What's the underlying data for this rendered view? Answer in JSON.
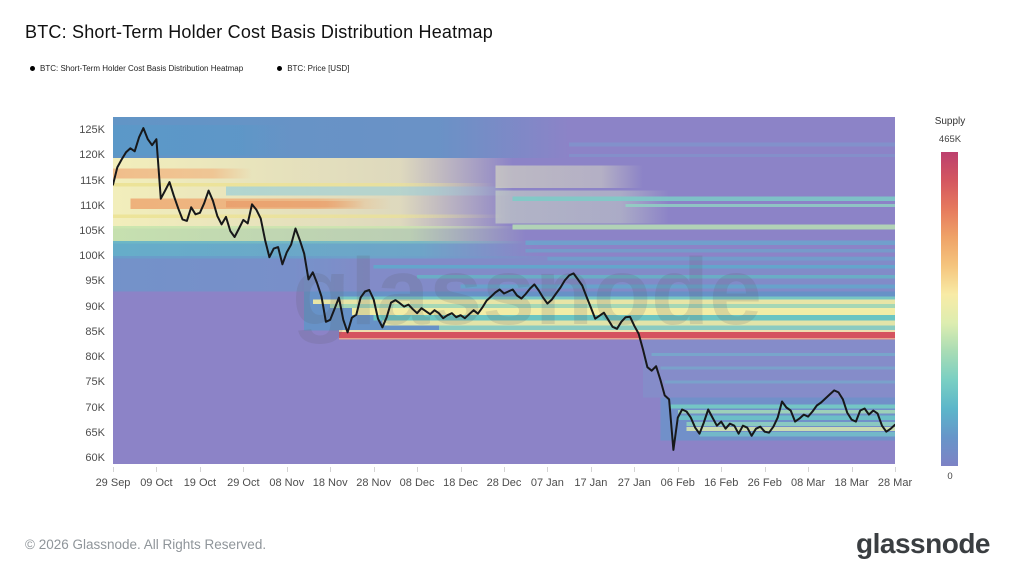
{
  "title": "BTC: Short-Term Holder Cost Basis Distribution Heatmap",
  "legend": [
    {
      "label": "BTC: Short-Term Holder Cost Basis Distribution Heatmap"
    },
    {
      "label": "BTC: Price [USD]"
    }
  ],
  "watermark": "glassnode",
  "colorbar": {
    "title": "Supply",
    "max_label": "465K",
    "min_label": "0",
    "stops": [
      "#bc3f6e",
      "#d45760",
      "#e67a5e",
      "#efa368",
      "#f5c57e",
      "#f8eba6",
      "#ddedb0",
      "#a8dcb5",
      "#79cfc3",
      "#5cb6ca",
      "#6795c9",
      "#7d82c5"
    ]
  },
  "footer": {
    "copyright": "© 2026 Glassnode. All Rights Reserved.",
    "brand": "glassnode"
  },
  "chart_data": {
    "type": "heatmap",
    "title": "BTC: Short-Term Holder Cost Basis Distribution Heatmap",
    "x_tick_labels": [
      "29 Sep",
      "09 Oct",
      "19 Oct",
      "29 Oct",
      "08 Nov",
      "18 Nov",
      "28 Nov",
      "08 Dec",
      "18 Dec",
      "28 Dec",
      "07 Jan",
      "17 Jan",
      "27 Jan",
      "06 Feb",
      "16 Feb",
      "26 Feb",
      "08 Mar",
      "18 Mar",
      "28 Mar"
    ],
    "x_tick_days": [
      0,
      10,
      20,
      30,
      40,
      50,
      60,
      70,
      80,
      90,
      100,
      110,
      120,
      130,
      140,
      150,
      160,
      170,
      180
    ],
    "y_tick_labels": [
      "125K",
      "120K",
      "115K",
      "110K",
      "105K",
      "100K",
      "95K",
      "90K",
      "85K",
      "80K",
      "75K",
      "70K",
      "65K",
      "60K"
    ],
    "y_tick_values_k": [
      125,
      120,
      115,
      110,
      105,
      100,
      95,
      90,
      85,
      80,
      75,
      70,
      65,
      60
    ],
    "x_range_days": [
      0,
      180
    ],
    "y_range_price_k": [
      58.8,
      127.6
    ],
    "supply_scale": {
      "min": 0,
      "max_label": "465K",
      "legend_title": "Supply"
    },
    "grid": false,
    "base_color": "#8c83c7",
    "price_line_color": "#17181a",
    "price_series": {
      "name": "BTC: Price [USD]",
      "unit": "thousand USD",
      "day_start_label": "29 Sep",
      "day_step": 1,
      "values_k": [
        114.2,
        117.6,
        119.2,
        120.6,
        121.4,
        120.8,
        123.6,
        125.4,
        123.2,
        122.0,
        123.2,
        111.4,
        113.0,
        114.7,
        112.0,
        109.5,
        107.3,
        107.0,
        109.7,
        108.3,
        108.6,
        110.5,
        113.0,
        111.0,
        108.0,
        106.3,
        107.8,
        105.0,
        103.8,
        105.5,
        107.2,
        106.5,
        110.3,
        109.2,
        107.5,
        103.2,
        99.8,
        101.5,
        101.8,
        98.4,
        100.8,
        102.3,
        105.5,
        103.2,
        100.5,
        95.4,
        96.8,
        94.6,
        92.0,
        87.0,
        87.4,
        89.6,
        91.8,
        87.4,
        84.9,
        87.8,
        88.4,
        91.8,
        93.0,
        93.3,
        91.4,
        87.6,
        85.9,
        87.9,
        90.8,
        91.3,
        90.7,
        90.0,
        90.4,
        89.5,
        88.7,
        89.7,
        89.1,
        88.5,
        89.3,
        88.7,
        87.7,
        88.3,
        88.7,
        87.9,
        88.3,
        87.7,
        88.5,
        89.3,
        88.6,
        89.8,
        91.2,
        92.0,
        92.8,
        93.4,
        92.6,
        93.0,
        93.4,
        92.2,
        91.6,
        92.5,
        93.6,
        94.4,
        93.2,
        91.8,
        90.6,
        91.4,
        92.6,
        93.8,
        95.2,
        96.2,
        96.6,
        95.4,
        94.2,
        92.0,
        89.8,
        87.6,
        88.2,
        88.8,
        87.4,
        86.0,
        85.6,
        87.0,
        87.9,
        88.0,
        86.2,
        84.6,
        81.5,
        78.0,
        77.3,
        78.2,
        75.5,
        72.4,
        71.6,
        61.6,
        68.0,
        69.6,
        69.2,
        68.0,
        66.0,
        64.8,
        67.0,
        69.6,
        68.0,
        66.4,
        67.2,
        65.8,
        66.8,
        66.4,
        64.8,
        66.4,
        66.0,
        64.4,
        65.8,
        66.2,
        65.2,
        65.0,
        66.2,
        68.0,
        71.2,
        70.0,
        69.4,
        67.2,
        67.8,
        68.6,
        68.2,
        69.2,
        70.4,
        71.0,
        71.8,
        72.6,
        73.4,
        73.0,
        71.6,
        69.0,
        67.6,
        67.2,
        69.4,
        69.8,
        68.6,
        69.4,
        68.8,
        66.4,
        65.2,
        65.8,
        66.6,
        66.4
      ]
    },
    "heatmap_bands": [
      {
        "p1": 127.6,
        "p0": 119.5,
        "d0": 0,
        "d1": 105,
        "c": "#6096c6",
        "o": 0.95,
        "f": "right"
      },
      {
        "p1": 126.0,
        "p0": 120.0,
        "d0": 0,
        "d1": 40,
        "c": "#569ac9",
        "o": 0.6,
        "f": "right"
      },
      {
        "p1": 122.5,
        "p0": 121.8,
        "d0": 105,
        "d1": 180,
        "c": "#7b9bcd",
        "o": 0.6
      },
      {
        "p1": 120.3,
        "p0": 119.7,
        "d0": 105,
        "d1": 180,
        "c": "#7b9bcd",
        "o": 0.5
      },
      {
        "p1": 119.5,
        "p0": 105.5,
        "d0": 0,
        "d1": 92,
        "c": "#f2eebb",
        "o": 1,
        "f": "right"
      },
      {
        "p1": 114.5,
        "p0": 113.8,
        "d0": 0,
        "d1": 88,
        "c": "#ece293",
        "o": 0.9,
        "f": "right"
      },
      {
        "p1": 108.3,
        "p0": 107.6,
        "d0": 0,
        "d1": 90,
        "c": "#ece293",
        "o": 0.85,
        "f": "right"
      },
      {
        "p1": 117.4,
        "p0": 115.4,
        "d0": 0,
        "d1": 32,
        "c": "#f0bb88",
        "o": 0.95,
        "f": "right"
      },
      {
        "p1": 111.4,
        "p0": 109.4,
        "d0": 4,
        "d1": 64,
        "c": "#eeae78",
        "o": 0.95,
        "f": "right"
      },
      {
        "p1": 110.9,
        "p0": 109.7,
        "d0": 26,
        "d1": 58,
        "c": "#e9a06d",
        "o": 0.9,
        "f": "right"
      },
      {
        "p1": 113.8,
        "p0": 112.0,
        "d0": 26,
        "d1": 92,
        "c": "#9fd0d6",
        "o": 0.75,
        "f": "right"
      },
      {
        "p1": 106.0,
        "p0": 102.5,
        "d0": 0,
        "d1": 95,
        "c": "#c9e5ae",
        "o": 0.95,
        "f": "right"
      },
      {
        "p1": 103.0,
        "p0": 99.5,
        "d0": 0,
        "d1": 98,
        "c": "#62b2c9",
        "o": 0.9,
        "f": "right"
      },
      {
        "p1": 100.0,
        "p0": 93.0,
        "d0": 0,
        "d1": 58,
        "c": "#6b97ca",
        "o": 0.75,
        "f": "right"
      },
      {
        "p1": 93.0,
        "p0": 85.3,
        "d0": 44,
        "d1": 180,
        "c": "#4f9cc6",
        "o": 0.6
      },
      {
        "p1": 100.0,
        "p0": 93.0,
        "d0": 44,
        "d1": 180,
        "c": "#6f9cca",
        "o": 0.35
      },
      {
        "p1": 118.0,
        "p0": 113.5,
        "d0": 88,
        "d1": 122,
        "c": "#e6e8c2",
        "o": 0.55,
        "f": "right"
      },
      {
        "p1": 113.0,
        "p0": 106.5,
        "d0": 88,
        "d1": 128,
        "c": "#d9e7c6",
        "o": 0.5,
        "f": "right"
      },
      {
        "p1": 111.8,
        "p0": 110.9,
        "d0": 92,
        "d1": 180,
        "c": "#7bcdc7",
        "o": 0.85
      },
      {
        "p1": 110.4,
        "p0": 109.8,
        "d0": 118,
        "d1": 180,
        "c": "#90d5c3",
        "o": 0.8
      },
      {
        "p1": 106.3,
        "p0": 105.3,
        "d0": 92,
        "d1": 180,
        "c": "#b7e0b3",
        "o": 0.85
      },
      {
        "p1": 103.1,
        "p0": 102.2,
        "d0": 95,
        "d1": 180,
        "c": "#6aa6cd",
        "o": 0.8
      },
      {
        "p1": 101.4,
        "p0": 100.7,
        "d0": 95,
        "d1": 180,
        "c": "#6aa6cd",
        "o": 0.65
      },
      {
        "p1": 99.8,
        "p0": 99.1,
        "d0": 100,
        "d1": 180,
        "c": "#6aa6cd",
        "o": 0.65
      },
      {
        "p1": 98.3,
        "p0": 97.6,
        "d0": 60,
        "d1": 180,
        "c": "#5fa9cc",
        "o": 0.85
      },
      {
        "p1": 96.3,
        "p0": 95.6,
        "d0": 70,
        "d1": 180,
        "c": "#64b5c6",
        "o": 0.8
      },
      {
        "p1": 94.4,
        "p0": 93.6,
        "d0": 80,
        "d1": 180,
        "c": "#5fa9cc",
        "o": 0.75
      },
      {
        "p1": 92.0,
        "p0": 91.4,
        "d0": 52,
        "d1": 180,
        "c": "#79ccc3",
        "o": 0.9
      },
      {
        "p1": 91.4,
        "p0": 90.5,
        "d0": 46,
        "d1": 180,
        "c": "#eeeaa4",
        "o": 0.95
      },
      {
        "p1": 90.5,
        "p0": 89.7,
        "d0": 50,
        "d1": 180,
        "c": "#a9dbb4",
        "o": 0.95
      },
      {
        "p1": 89.7,
        "p0": 88.3,
        "d0": 55,
        "d1": 180,
        "c": "#f2eda6",
        "o": 1
      },
      {
        "p1": 88.3,
        "p0": 87.3,
        "d0": 60,
        "d1": 180,
        "c": "#6cc8c2",
        "o": 0.95
      },
      {
        "p1": 87.3,
        "p0": 86.3,
        "d0": 62,
        "d1": 180,
        "c": "#e9e9a8",
        "o": 0.95
      },
      {
        "p1": 86.3,
        "p0": 85.3,
        "d0": 75,
        "d1": 180,
        "c": "#8fd2c0",
        "o": 0.9
      },
      {
        "p1": 85.35,
        "p0": 85.0,
        "d0": 52,
        "d1": 180,
        "c": "#f4e3ae",
        "o": 0.95
      },
      {
        "p1": 85.0,
        "p0": 83.8,
        "d0": 52,
        "d1": 180,
        "c": "#d5535f",
        "o": 1
      },
      {
        "p1": 83.8,
        "p0": 83.45,
        "d0": 52,
        "d1": 180,
        "c": "#eda58a",
        "o": 0.95
      },
      {
        "p1": 83.4,
        "p0": 72.0,
        "d0": 122,
        "d1": 180,
        "c": "#7e95cb",
        "o": 0.5
      },
      {
        "p1": 80.8,
        "p0": 80.2,
        "d0": 124,
        "d1": 180,
        "c": "#6fb5cd",
        "o": 0.6
      },
      {
        "p1": 78.1,
        "p0": 77.5,
        "d0": 126,
        "d1": 180,
        "c": "#6fb5cd",
        "o": 0.5
      },
      {
        "p1": 75.4,
        "p0": 74.8,
        "d0": 127,
        "d1": 180,
        "c": "#6fb5cd",
        "o": 0.5
      },
      {
        "p1": 72.0,
        "p0": 63.5,
        "d0": 126,
        "d1": 180,
        "c": "#5b9bca",
        "o": 0.55
      },
      {
        "p1": 70.6,
        "p0": 69.8,
        "d0": 128,
        "d1": 180,
        "c": "#74ccc4",
        "o": 0.9
      },
      {
        "p1": 69.5,
        "p0": 68.8,
        "d0": 130,
        "d1": 180,
        "c": "#a5dcb6",
        "o": 0.85
      },
      {
        "p1": 68.4,
        "p0": 67.5,
        "d0": 130,
        "d1": 180,
        "c": "#6cc4c6",
        "o": 0.9
      },
      {
        "p1": 67.1,
        "p0": 66.3,
        "d0": 132,
        "d1": 180,
        "c": "#8ed3c0",
        "o": 0.85
      },
      {
        "p1": 66.1,
        "p0": 65.3,
        "d0": 132,
        "d1": 180,
        "c": "#d9e9ae",
        "o": 0.85
      },
      {
        "p1": 65.1,
        "p0": 64.3,
        "d0": 135,
        "d1": 180,
        "c": "#74c6c8",
        "o": 0.75
      }
    ]
  }
}
